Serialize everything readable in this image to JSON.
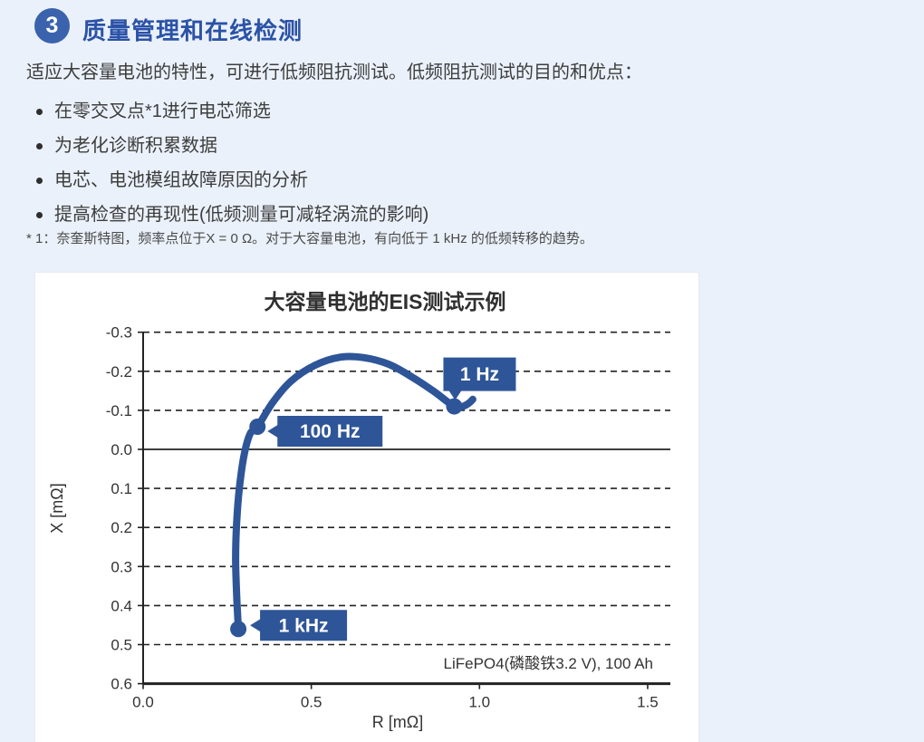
{
  "page": {
    "background": "#eaf1fa"
  },
  "header": {
    "number": "3",
    "title": "质量管理和在线检测",
    "badge_color": "#3a62ad",
    "title_color": "#2b52a7"
  },
  "content": {
    "intro": "适应大容量电池的特性，可进行低频阻抗测试。低频阻抗测试的目的和优点：",
    "bullets": [
      "在零交叉点*1进行电芯筛选",
      "为老化诊断积累数据",
      "电芯、电池模组故障原因的分析",
      "提高检查的再现性(低频测量可减轻涡流的影响)"
    ],
    "footnote": "* 1：奈奎斯特图，频率点位于X = 0 Ω。对于大容量电池，有向低于 1 kHz 的低频转移的趋势。"
  },
  "chart_data": {
    "type": "line",
    "title": "大容量电池的EIS测试示例",
    "xlabel": "R [mΩ]",
    "ylabel": "X [mΩ]",
    "xlim": [
      0,
      1.5
    ],
    "ylim": [
      -0.3,
      0.6
    ],
    "y_axis_inverted": true,
    "x_ticks": [
      0.0,
      0.5,
      1.0,
      1.5
    ],
    "y_ticks": [
      -0.3,
      -0.2,
      -0.1,
      0.0,
      0.1,
      0.2,
      0.3,
      0.4,
      0.5,
      0.6
    ],
    "grid": "horizontal-dashed",
    "annotation": "LiFePO4(磷酸铁3.2 V), 100 Ah",
    "series": [
      {
        "name": "EIS Nyquist curve",
        "color": "#2e5597",
        "points_RX": [
          [
            0.283,
            0.46
          ],
          [
            0.278,
            0.37
          ],
          [
            0.275,
            0.28
          ],
          [
            0.278,
            0.19
          ],
          [
            0.286,
            0.1
          ],
          [
            0.3,
            0.015
          ],
          [
            0.318,
            -0.04
          ],
          [
            0.34,
            -0.058
          ],
          [
            0.385,
            -0.12
          ],
          [
            0.44,
            -0.175
          ],
          [
            0.51,
            -0.215
          ],
          [
            0.585,
            -0.236
          ],
          [
            0.655,
            -0.235
          ],
          [
            0.73,
            -0.218
          ],
          [
            0.8,
            -0.185
          ],
          [
            0.865,
            -0.148
          ],
          [
            0.925,
            -0.11
          ],
          [
            0.95,
            -0.11
          ],
          [
            0.968,
            -0.118
          ],
          [
            0.98,
            -0.128
          ]
        ]
      }
    ],
    "labeled_points": [
      {
        "label": "1 kHz",
        "R": 0.283,
        "X": 0.46
      },
      {
        "label": "100 Hz",
        "R": 0.34,
        "X": -0.058
      },
      {
        "label": "1 Hz",
        "R": 0.925,
        "X": -0.11
      }
    ]
  }
}
